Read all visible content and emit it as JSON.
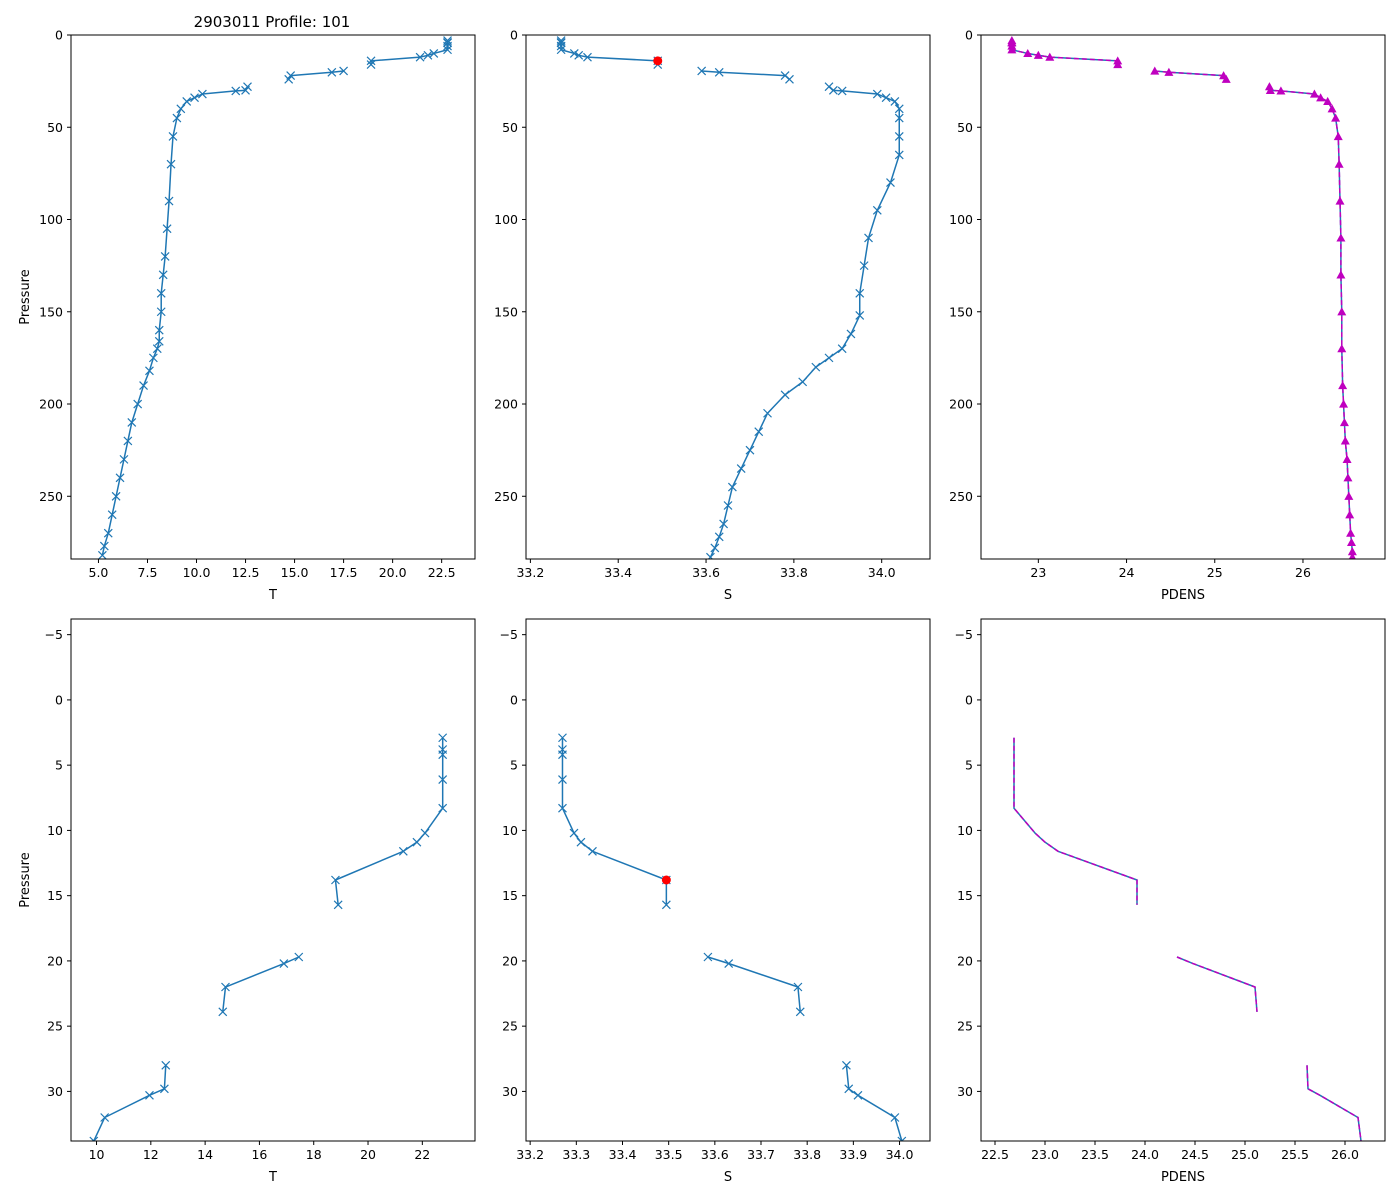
{
  "title": "2903011 Profile: 101",
  "colors": {
    "series": "#1f77b4",
    "flag": "#ff0000",
    "density": "#bf00bf"
  },
  "chart_data": [
    {
      "id": "top-temperature",
      "type": "line",
      "xlabel": "T",
      "ylabel": "Pressure",
      "xlim": [
        3.6,
        24.2
      ],
      "ylim": [
        284,
        0
      ],
      "xticks": [
        5.0,
        7.5,
        10.0,
        12.5,
        15.0,
        17.5,
        20.0,
        22.5
      ],
      "xtick_labels": [
        "5.0",
        "7.5",
        "10.0",
        "12.5",
        "15.0",
        "17.5",
        "20.0",
        "22.5"
      ],
      "yticks": [
        0,
        50,
        100,
        150,
        200,
        250
      ],
      "ytick_labels": [
        "0",
        "50",
        "100",
        "150",
        "200",
        "250"
      ],
      "series": [
        {
          "name": "T",
          "marker": "x",
          "color": "#1f77b4",
          "x": [
            22.8,
            22.8,
            22.8,
            22.8,
            22.8,
            22.1,
            21.8,
            21.4,
            18.9,
            18.9,
            null,
            17.5,
            16.9,
            14.8,
            14.7,
            null,
            12.6,
            12.5,
            12.0,
            10.3,
            9.9,
            9.5,
            9.2,
            9.0,
            8.8,
            8.7,
            8.6,
            8.5,
            8.4,
            8.3,
            8.2,
            8.2,
            8.1,
            8.1,
            8.0,
            7.8,
            7.6,
            7.3,
            7.0,
            6.7,
            6.5,
            6.3,
            6.1,
            5.9,
            5.7,
            5.5,
            5.3,
            5.2
          ],
          "y": [
            3,
            4,
            4.3,
            6,
            8,
            10,
            11,
            12,
            14,
            16,
            null,
            19.5,
            20.2,
            22,
            24,
            null,
            28,
            30,
            30.3,
            32,
            34,
            36,
            40,
            45,
            55,
            70,
            90,
            105,
            120,
            130,
            140,
            150,
            160,
            166,
            170,
            175,
            182,
            190,
            200,
            210,
            220,
            230,
            240,
            250,
            260,
            270,
            277,
            282
          ]
        }
      ]
    },
    {
      "id": "top-salinity",
      "type": "line",
      "xlabel": "S",
      "ylabel": "",
      "xlim": [
        33.19,
        34.11
      ],
      "ylim": [
        284,
        0
      ],
      "xticks": [
        33.2,
        33.4,
        33.6,
        33.8,
        34.0
      ],
      "xtick_labels": [
        "33.2",
        "33.4",
        "33.6",
        "33.8",
        "34.0"
      ],
      "yticks": [
        0,
        50,
        100,
        150,
        200,
        250
      ],
      "ytick_labels": [
        "0",
        "50",
        "100",
        "150",
        "200",
        "250"
      ],
      "series": [
        {
          "name": "S",
          "marker": "x",
          "color": "#1f77b4",
          "x": [
            33.27,
            33.27,
            33.27,
            33.27,
            33.27,
            33.3,
            33.31,
            33.33,
            33.49,
            33.49,
            null,
            33.59,
            33.63,
            33.78,
            33.79,
            null,
            33.88,
            33.89,
            33.91,
            33.99,
            34.01,
            34.03,
            34.04,
            34.04,
            34.04,
            34.04,
            34.02,
            33.99,
            33.97,
            33.96,
            33.95,
            33.95,
            33.93,
            33.91,
            33.88,
            33.85,
            33.82,
            33.78,
            33.74,
            33.72,
            33.7,
            33.68,
            33.66,
            33.65,
            33.64,
            33.63,
            33.62,
            33.61
          ],
          "y": [
            3,
            4,
            4.3,
            6,
            8,
            10,
            11,
            12,
            14,
            16,
            null,
            19.5,
            20.2,
            22,
            24,
            null,
            28,
            30,
            30.3,
            32,
            34,
            36,
            40,
            45,
            55,
            65,
            80,
            95,
            110,
            125,
            140,
            152,
            162,
            170,
            175,
            180,
            188,
            195,
            205,
            215,
            225,
            235,
            245,
            255,
            265,
            272,
            278,
            283
          ]
        },
        {
          "name": "flagged",
          "marker": "circle",
          "color": "#ff0000",
          "x": [
            33.49
          ],
          "y": [
            14
          ]
        }
      ]
    },
    {
      "id": "top-density",
      "type": "line",
      "xlabel": "PDENS",
      "ylabel": "",
      "xlim": [
        22.35,
        26.93
      ],
      "ylim": [
        284,
        0
      ],
      "xticks": [
        23,
        24,
        25,
        26
      ],
      "xtick_labels": [
        "23",
        "24",
        "25",
        "26"
      ],
      "yticks": [
        0,
        50,
        100,
        150,
        200,
        250
      ],
      "ytick_labels": [
        "0",
        "50",
        "100",
        "150",
        "200",
        "250"
      ],
      "series": [
        {
          "name": "PDENS",
          "marker": "triangle",
          "color": "#1f77b4",
          "overlay_color": "#bf00bf",
          "x": [
            22.7,
            22.7,
            22.7,
            22.7,
            22.7,
            22.88,
            23.0,
            23.13,
            23.9,
            23.9,
            null,
            24.32,
            24.48,
            25.1,
            25.13,
            null,
            25.62,
            25.63,
            25.75,
            26.13,
            26.2,
            26.28,
            26.33,
            26.37,
            26.4,
            26.41,
            26.42,
            26.43,
            26.43,
            26.44,
            26.44,
            26.45,
            26.46,
            26.47,
            26.48,
            26.5,
            26.51,
            26.52,
            26.53,
            26.54,
            26.55,
            26.56,
            26.56,
            26.57
          ],
          "y": [
            3,
            4,
            4.3,
            6,
            8,
            10,
            11,
            12,
            14,
            16,
            null,
            19.5,
            20.2,
            22,
            24,
            null,
            28,
            30,
            30.3,
            32,
            34,
            36,
            40,
            45,
            55,
            70,
            90,
            110,
            130,
            150,
            170,
            190,
            200,
            210,
            220,
            230,
            240,
            250,
            260,
            270,
            275,
            280,
            283,
            284
          ]
        }
      ]
    },
    {
      "id": "bottom-temperature",
      "type": "line",
      "xlabel": "T",
      "ylabel": "Pressure",
      "xlim": [
        9.06,
        23.94
      ],
      "ylim": [
        33.8,
        -6.2
      ],
      "xticks": [
        10,
        12,
        14,
        16,
        18,
        20,
        22
      ],
      "xtick_labels": [
        "10",
        "12",
        "14",
        "16",
        "18",
        "20",
        "22"
      ],
      "yticks": [
        -5,
        0,
        5,
        10,
        15,
        20,
        25,
        30
      ],
      "ytick_labels": [
        "−5",
        "0",
        "5",
        "10",
        "15",
        "20",
        "25",
        "30"
      ],
      "series": [
        {
          "name": "T",
          "marker": "x",
          "color": "#1f77b4",
          "x": [
            22.75,
            22.75,
            22.75,
            22.75,
            22.75,
            22.1,
            21.8,
            21.3,
            18.8,
            18.9,
            null,
            17.45,
            16.9,
            14.75,
            14.65,
            null,
            12.55,
            12.5,
            11.95,
            10.3,
            9.9
          ],
          "y": [
            2.9,
            3.8,
            4.2,
            6.1,
            8.3,
            10.2,
            10.9,
            11.6,
            13.8,
            15.7,
            null,
            19.7,
            20.2,
            22.0,
            23.9,
            null,
            28.0,
            29.8,
            30.3,
            32.0,
            33.8
          ]
        }
      ]
    },
    {
      "id": "bottom-salinity",
      "type": "line",
      "xlabel": "S",
      "ylabel": "",
      "xlim": [
        33.191,
        34.066
      ],
      "ylim": [
        33.8,
        -6.2
      ],
      "xticks": [
        33.2,
        33.3,
        33.4,
        33.5,
        33.6,
        33.7,
        33.8,
        33.9,
        34.0
      ],
      "xtick_labels": [
        "33.2",
        "33.3",
        "33.4",
        "33.5",
        "33.6",
        "33.7",
        "33.8",
        "33.9",
        "34.0"
      ],
      "yticks": [
        -5,
        0,
        5,
        10,
        15,
        20,
        25,
        30
      ],
      "ytick_labels": [
        "−5",
        "0",
        "5",
        "10",
        "15",
        "20",
        "25",
        "30"
      ],
      "series": [
        {
          "name": "S",
          "marker": "x",
          "color": "#1f77b4",
          "x": [
            33.27,
            33.27,
            33.27,
            33.27,
            33.27,
            33.295,
            33.31,
            33.335,
            33.495,
            33.495,
            null,
            33.585,
            33.63,
            33.78,
            33.785,
            null,
            33.885,
            33.89,
            33.91,
            33.99,
            34.005
          ],
          "y": [
            2.9,
            3.8,
            4.2,
            6.1,
            8.3,
            10.2,
            10.9,
            11.6,
            13.8,
            15.7,
            null,
            19.7,
            20.2,
            22.0,
            23.9,
            null,
            28.0,
            29.8,
            30.3,
            32.0,
            33.8
          ]
        },
        {
          "name": "flagged",
          "marker": "circle",
          "color": "#ff0000",
          "x": [
            33.495
          ],
          "y": [
            13.8
          ]
        }
      ]
    },
    {
      "id": "bottom-density",
      "type": "line",
      "xlabel": "PDENS",
      "ylabel": "",
      "xlim": [
        22.36,
        26.4
      ],
      "ylim": [
        33.8,
        -6.2
      ],
      "xticks": [
        22.5,
        23.0,
        23.5,
        24.0,
        24.5,
        25.0,
        25.5,
        26.0
      ],
      "xtick_labels": [
        "22.5",
        "23.0",
        "23.5",
        "24.0",
        "24.5",
        "25.0",
        "25.5",
        "26.0"
      ],
      "yticks": [
        -5,
        0,
        5,
        10,
        15,
        20,
        25,
        30
      ],
      "ytick_labels": [
        "−5",
        "0",
        "5",
        "10",
        "15",
        "20",
        "25",
        "30"
      ],
      "series": [
        {
          "name": "PDENS",
          "marker": "none",
          "color": "#1f77b4",
          "overlay_color": "#bf00bf",
          "x": [
            22.69,
            22.69,
            22.69,
            22.69,
            22.69,
            22.9,
            23.0,
            23.13,
            23.92,
            23.92,
            null,
            24.32,
            24.48,
            25.1,
            25.12,
            null,
            25.62,
            25.63,
            25.75,
            26.13,
            26.16
          ],
          "y": [
            2.9,
            3.8,
            4.2,
            6.1,
            8.3,
            10.2,
            10.9,
            11.6,
            13.8,
            15.7,
            null,
            19.7,
            20.2,
            22.0,
            23.9,
            null,
            28.0,
            29.8,
            30.3,
            32.0,
            33.8
          ]
        }
      ]
    }
  ]
}
